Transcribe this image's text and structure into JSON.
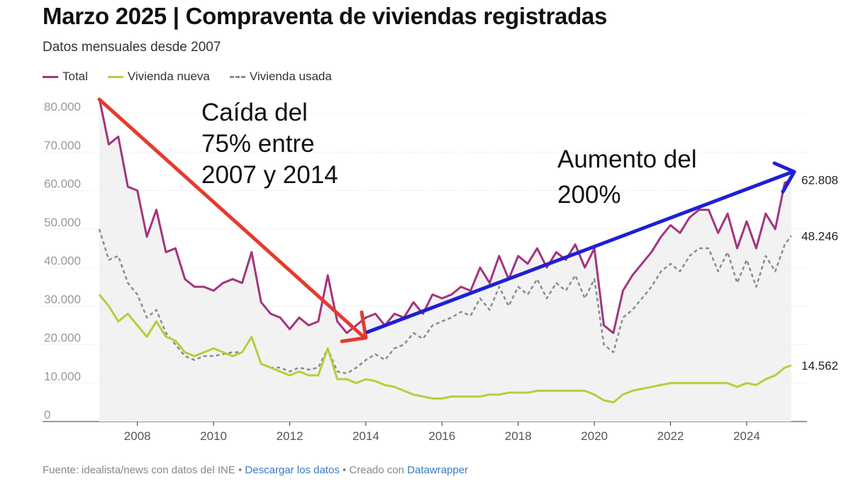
{
  "chart_data": {
    "type": "line",
    "title": "Marzo 2025 | Compraventa de viviendas registradas",
    "subtitle": "Datos mensuales desde 2007",
    "ylim": [
      0,
      80000
    ],
    "xlim": [
      2007,
      2025.25
    ],
    "y_ticks": [
      "0",
      "10.000",
      "20.000",
      "30.000",
      "40.000",
      "50.000",
      "60.000",
      "70.000",
      "80.000"
    ],
    "y_tick_values": [
      0,
      10000,
      20000,
      30000,
      40000,
      50000,
      60000,
      70000,
      80000
    ],
    "x_ticks": [
      "2008",
      "2010",
      "2012",
      "2014",
      "2016",
      "2018",
      "2020",
      "2022",
      "2024"
    ],
    "x_tick_values": [
      2008,
      2010,
      2012,
      2014,
      2016,
      2018,
      2020,
      2022,
      2024
    ],
    "grid": true,
    "legend": [
      {
        "name": "Total",
        "color": "#a3357f",
        "style": "solid"
      },
      {
        "name": "Vivienda nueva",
        "color": "#b5cf3c",
        "style": "solid"
      },
      {
        "name": "Vivienda usada",
        "color": "#8c8c8c",
        "style": "dashed"
      }
    ],
    "series": [
      {
        "name": "Total",
        "color": "#a3357f",
        "x": [
          2007.0,
          2007.25,
          2007.5,
          2007.75,
          2008.0,
          2008.25,
          2008.5,
          2008.75,
          2009.0,
          2009.25,
          2009.5,
          2009.75,
          2010.0,
          2010.25,
          2010.5,
          2010.75,
          2011.0,
          2011.25,
          2011.5,
          2011.75,
          2012.0,
          2012.25,
          2012.5,
          2012.75,
          2013.0,
          2013.25,
          2013.5,
          2013.75,
          2014.0,
          2014.25,
          2014.5,
          2014.75,
          2015.0,
          2015.25,
          2015.5,
          2015.75,
          2016.0,
          2016.25,
          2016.5,
          2016.75,
          2017.0,
          2017.25,
          2017.5,
          2017.75,
          2018.0,
          2018.25,
          2018.5,
          2018.75,
          2019.0,
          2019.25,
          2019.5,
          2019.75,
          2020.0,
          2020.25,
          2020.5,
          2020.75,
          2021.0,
          2021.25,
          2021.5,
          2021.75,
          2022.0,
          2022.25,
          2022.5,
          2022.75,
          2023.0,
          2023.25,
          2023.5,
          2023.75,
          2024.0,
          2024.25,
          2024.5,
          2024.75,
          2025.0,
          2025.17
        ],
        "y": [
          84000,
          72000,
          74000,
          61000,
          60000,
          48000,
          55000,
          44000,
          45000,
          37000,
          35000,
          35000,
          34000,
          36000,
          37000,
          36000,
          44000,
          31000,
          28000,
          27000,
          24000,
          27000,
          25000,
          26000,
          38000,
          26000,
          23000,
          25000,
          27000,
          28000,
          25000,
          28000,
          27000,
          31000,
          28000,
          33000,
          32000,
          33000,
          35000,
          34000,
          40000,
          36000,
          43000,
          37000,
          43000,
          41000,
          45000,
          40000,
          44000,
          42000,
          46000,
          40000,
          45000,
          25000,
          23000,
          34000,
          38000,
          41000,
          44000,
          48000,
          51000,
          49000,
          53000,
          55000,
          55000,
          49000,
          54000,
          45000,
          52000,
          45000,
          54000,
          50000,
          62000,
          62808
        ]
      },
      {
        "name": "Vivienda nueva",
        "color": "#b5cf3c",
        "x": [
          2007.0,
          2007.25,
          2007.5,
          2007.75,
          2008.0,
          2008.25,
          2008.5,
          2008.75,
          2009.0,
          2009.25,
          2009.5,
          2009.75,
          2010.0,
          2010.25,
          2010.5,
          2010.75,
          2011.0,
          2011.25,
          2011.5,
          2011.75,
          2012.0,
          2012.25,
          2012.5,
          2012.75,
          2013.0,
          2013.25,
          2013.5,
          2013.75,
          2014.0,
          2014.25,
          2014.5,
          2014.75,
          2015.0,
          2015.25,
          2015.5,
          2015.75,
          2016.0,
          2016.25,
          2016.5,
          2016.75,
          2017.0,
          2017.25,
          2017.5,
          2017.75,
          2018.0,
          2018.25,
          2018.5,
          2018.75,
          2019.0,
          2019.25,
          2019.5,
          2019.75,
          2020.0,
          2020.25,
          2020.5,
          2020.75,
          2021.0,
          2021.25,
          2021.5,
          2021.75,
          2022.0,
          2022.25,
          2022.5,
          2022.75,
          2023.0,
          2023.25,
          2023.5,
          2023.75,
          2024.0,
          2024.25,
          2024.5,
          2024.75,
          2025.0,
          2025.17
        ],
        "y": [
          33000,
          30000,
          26000,
          28000,
          25000,
          22000,
          26000,
          22000,
          21000,
          18000,
          17000,
          18000,
          19000,
          18000,
          17000,
          18000,
          22000,
          15000,
          14000,
          13000,
          12000,
          13000,
          12000,
          12000,
          19000,
          11000,
          11000,
          10000,
          11000,
          10500,
          9500,
          9000,
          8000,
          7000,
          6500,
          6000,
          6000,
          6500,
          6500,
          6500,
          6500,
          7000,
          7000,
          7500,
          7500,
          7500,
          8000,
          8000,
          8000,
          8000,
          8000,
          8000,
          7000,
          5500,
          5000,
          7000,
          8000,
          8500,
          9000,
          9500,
          10000,
          10000,
          10000,
          10000,
          10000,
          10000,
          10000,
          9000,
          10000,
          9500,
          11000,
          12000,
          14000,
          14562
        ]
      },
      {
        "name": "Vivienda usada",
        "color": "#8c8c8c",
        "x": [
          2007.0,
          2007.25,
          2007.5,
          2007.75,
          2008.0,
          2008.25,
          2008.5,
          2008.75,
          2009.0,
          2009.25,
          2009.5,
          2009.75,
          2010.0,
          2010.25,
          2010.5,
          2010.75,
          2011.0,
          2011.25,
          2011.5,
          2011.75,
          2012.0,
          2012.25,
          2012.5,
          2012.75,
          2013.0,
          2013.25,
          2013.5,
          2013.75,
          2014.0,
          2014.25,
          2014.5,
          2014.75,
          2015.0,
          2015.25,
          2015.5,
          2015.75,
          2016.0,
          2016.25,
          2016.5,
          2016.75,
          2017.0,
          2017.25,
          2017.5,
          2017.75,
          2018.0,
          2018.25,
          2018.5,
          2018.75,
          2019.0,
          2019.25,
          2019.5,
          2019.75,
          2020.0,
          2020.25,
          2020.5,
          2020.75,
          2021.0,
          2021.25,
          2021.5,
          2021.75,
          2022.0,
          2022.25,
          2022.5,
          2022.75,
          2023.0,
          2023.25,
          2023.5,
          2023.75,
          2024.0,
          2024.25,
          2024.5,
          2024.75,
          2025.0,
          2025.17
        ],
        "y": [
          50000,
          42000,
          43000,
          36000,
          33000,
          27000,
          29000,
          23000,
          20000,
          17000,
          16000,
          17000,
          17000,
          17500,
          18000,
          18000,
          22000,
          15000,
          14000,
          14000,
          13000,
          14000,
          13500,
          14000,
          19000,
          13000,
          12500,
          14000,
          16000,
          17500,
          16000,
          19000,
          20000,
          23000,
          21500,
          25000,
          26000,
          27000,
          28500,
          27500,
          32000,
          29000,
          35000,
          30000,
          35000,
          33000,
          37000,
          32000,
          36000,
          34000,
          38000,
          32000,
          37000,
          20000,
          18000,
          27000,
          29000,
          32000,
          35000,
          39000,
          41000,
          39000,
          43000,
          45000,
          45000,
          39000,
          44000,
          36000,
          42000,
          35000,
          43000,
          39000,
          46000,
          48246
        ]
      }
    ],
    "end_labels": [
      "62.808",
      "48.246",
      "14.562"
    ],
    "annotations": [
      {
        "lines": [
          "Caída del",
          "75% entre",
          "2007 y 2014"
        ],
        "color": "#e63a2e"
      },
      {
        "lines": [
          "Aumento del",
          "200%"
        ],
        "color": "#1f1fd6"
      }
    ]
  },
  "footer": {
    "source": "Fuente: idealista/news con datos del INE",
    "separator": " • ",
    "download_label": "Descargar los datos",
    "created_with": "Creado con",
    "tool_label": "Datawrapper"
  }
}
